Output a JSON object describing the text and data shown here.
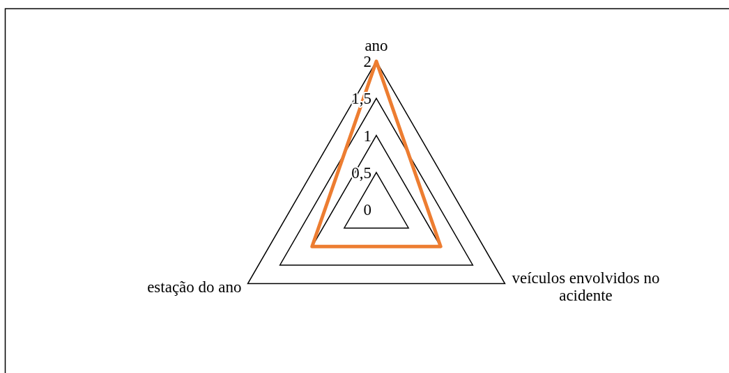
{
  "chart_data": {
    "type": "radar",
    "categories": [
      "ano",
      "veículos envolvidos no acidente",
      "estação do ano"
    ],
    "series": [
      {
        "color": "#ed7d31",
        "values": [
          2,
          1,
          1
        ]
      }
    ],
    "ylim": [
      0,
      2
    ],
    "yticks": [
      {
        "value": 0,
        "label": "0"
      },
      {
        "value": 0.5,
        "label": "0,5"
      },
      {
        "value": 1,
        "label": "1"
      },
      {
        "value": 1.5,
        "label": "1,5"
      },
      {
        "value": 2,
        "label": "2"
      }
    ],
    "grid": true
  }
}
